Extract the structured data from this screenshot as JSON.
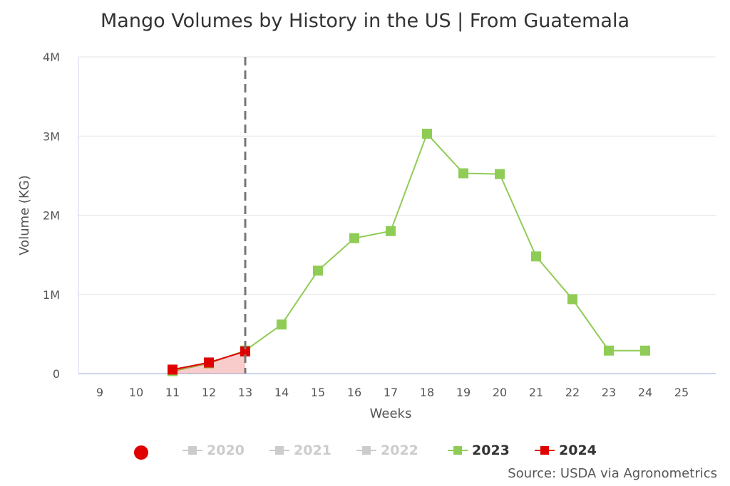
{
  "chart_data": {
    "type": "line",
    "title": "Mango Volumes by History in the US | From Guatemala",
    "xlabel": "Weeks",
    "ylabel": "Volume (KG)",
    "x": [
      9,
      10,
      11,
      12,
      13,
      14,
      15,
      16,
      17,
      18,
      19,
      20,
      21,
      22,
      23,
      24,
      25
    ],
    "yticks": [
      {
        "v": 0,
        "label": "0"
      },
      {
        "v": 1000000,
        "label": "1M"
      },
      {
        "v": 2000000,
        "label": "2M"
      },
      {
        "v": 3000000,
        "label": "3M"
      },
      {
        "v": 4000000,
        "label": "4M"
      }
    ],
    "ylim": [
      0,
      4000000
    ],
    "grid": true,
    "current_week_marker": 13,
    "legend_placement": "bottom",
    "series": [
      {
        "name": "2020",
        "color": "#cccccc",
        "visible": false,
        "points": []
      },
      {
        "name": "2021",
        "color": "#cccccc",
        "visible": false,
        "points": []
      },
      {
        "name": "2022",
        "color": "#cccccc",
        "visible": false,
        "points": []
      },
      {
        "name": "2023",
        "color": "#8fcc55",
        "visible": true,
        "points": [
          [
            11,
            30000
          ],
          [
            12,
            130000
          ],
          [
            13,
            290000
          ],
          [
            14,
            620000
          ],
          [
            15,
            1300000
          ],
          [
            16,
            1710000
          ],
          [
            17,
            1800000
          ],
          [
            18,
            3030000
          ],
          [
            19,
            2530000
          ],
          [
            20,
            2520000
          ],
          [
            21,
            1480000
          ],
          [
            22,
            940000
          ],
          [
            23,
            290000
          ],
          [
            24,
            290000
          ]
        ]
      },
      {
        "name": "2024",
        "color": "#e00000",
        "visible": true,
        "area": true,
        "points": [
          [
            11,
            50000
          ],
          [
            12,
            140000
          ],
          [
            13,
            280000
          ]
        ]
      }
    ]
  },
  "source": "Source: USDA via Agronometrics"
}
